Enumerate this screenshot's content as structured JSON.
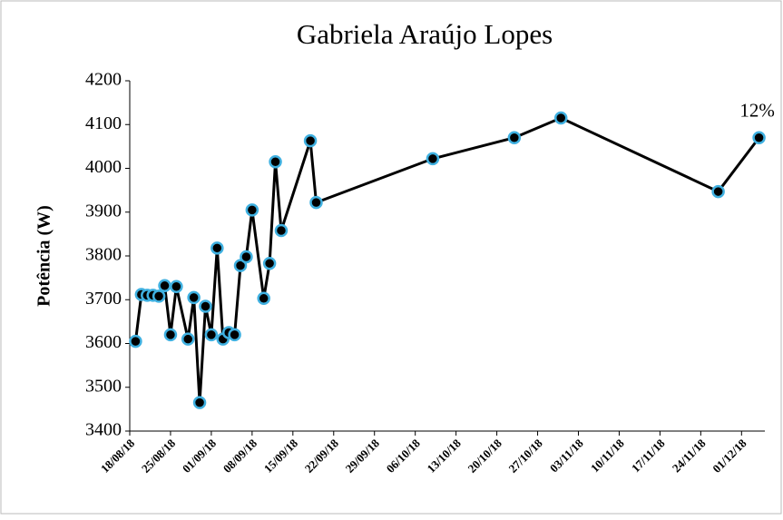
{
  "chart_data": {
    "type": "line",
    "title": "Gabriela Araújo Lopes",
    "ylabel": "Potência (W)",
    "annotation": "12%",
    "x": [
      "2018-08-19",
      "2018-08-20",
      "2018-08-21",
      "2018-08-22",
      "2018-08-23",
      "2018-08-24",
      "2018-08-25",
      "2018-08-26",
      "2018-08-28",
      "2018-08-29",
      "2018-08-30",
      "2018-08-31",
      "2018-09-01",
      "2018-09-02",
      "2018-09-03",
      "2018-09-04",
      "2018-09-05",
      "2018-09-06",
      "2018-09-07",
      "2018-09-08",
      "2018-09-10",
      "2018-09-11",
      "2018-09-12",
      "2018-09-13",
      "2018-09-18",
      "2018-09-19",
      "2018-10-09",
      "2018-10-23",
      "2018-10-31",
      "2018-11-27",
      "2018-12-04"
    ],
    "series": [
      {
        "name": "Potência",
        "color": "#000000",
        "marker_edge": "#3fb0e0",
        "values": [
          3605,
          3712,
          3710,
          3710,
          3708,
          3732,
          3620,
          3730,
          3610,
          3705,
          3465,
          3685,
          3620,
          3818,
          3610,
          3625,
          3620,
          3778,
          3798,
          3905,
          3703,
          3783,
          4015,
          3858,
          4063,
          3922,
          4022,
          4070,
          4115,
          3947,
          4070
        ]
      }
    ],
    "xlim": [
      "2018-08-18",
      "2018-12-05"
    ],
    "xticks": [
      {
        "value": "2018-08-18",
        "label": "18/08/18"
      },
      {
        "value": "2018-08-25",
        "label": "25/08/18"
      },
      {
        "value": "2018-09-01",
        "label": "01/09/18"
      },
      {
        "value": "2018-09-08",
        "label": "08/09/18"
      },
      {
        "value": "2018-09-15",
        "label": "15/09/18"
      },
      {
        "value": "2018-09-22",
        "label": "22/09/18"
      },
      {
        "value": "2018-09-29",
        "label": "29/09/18"
      },
      {
        "value": "2018-10-06",
        "label": "06/10/18"
      },
      {
        "value": "2018-10-13",
        "label": "13/10/18"
      },
      {
        "value": "2018-10-20",
        "label": "20/10/18"
      },
      {
        "value": "2018-10-27",
        "label": "27/10/18"
      },
      {
        "value": "2018-11-03",
        "label": "03/11/18"
      },
      {
        "value": "2018-11-10",
        "label": "10/11/18"
      },
      {
        "value": "2018-11-17",
        "label": "17/11/18"
      },
      {
        "value": "2018-11-24",
        "label": "24/11/18"
      },
      {
        "value": "2018-12-01",
        "label": "01/12/18"
      }
    ],
    "ylim": [
      3400,
      4200
    ],
    "yticks": [
      3400,
      3500,
      3600,
      3700,
      3800,
      3900,
      4000,
      4100,
      4200
    ],
    "grid": false
  }
}
